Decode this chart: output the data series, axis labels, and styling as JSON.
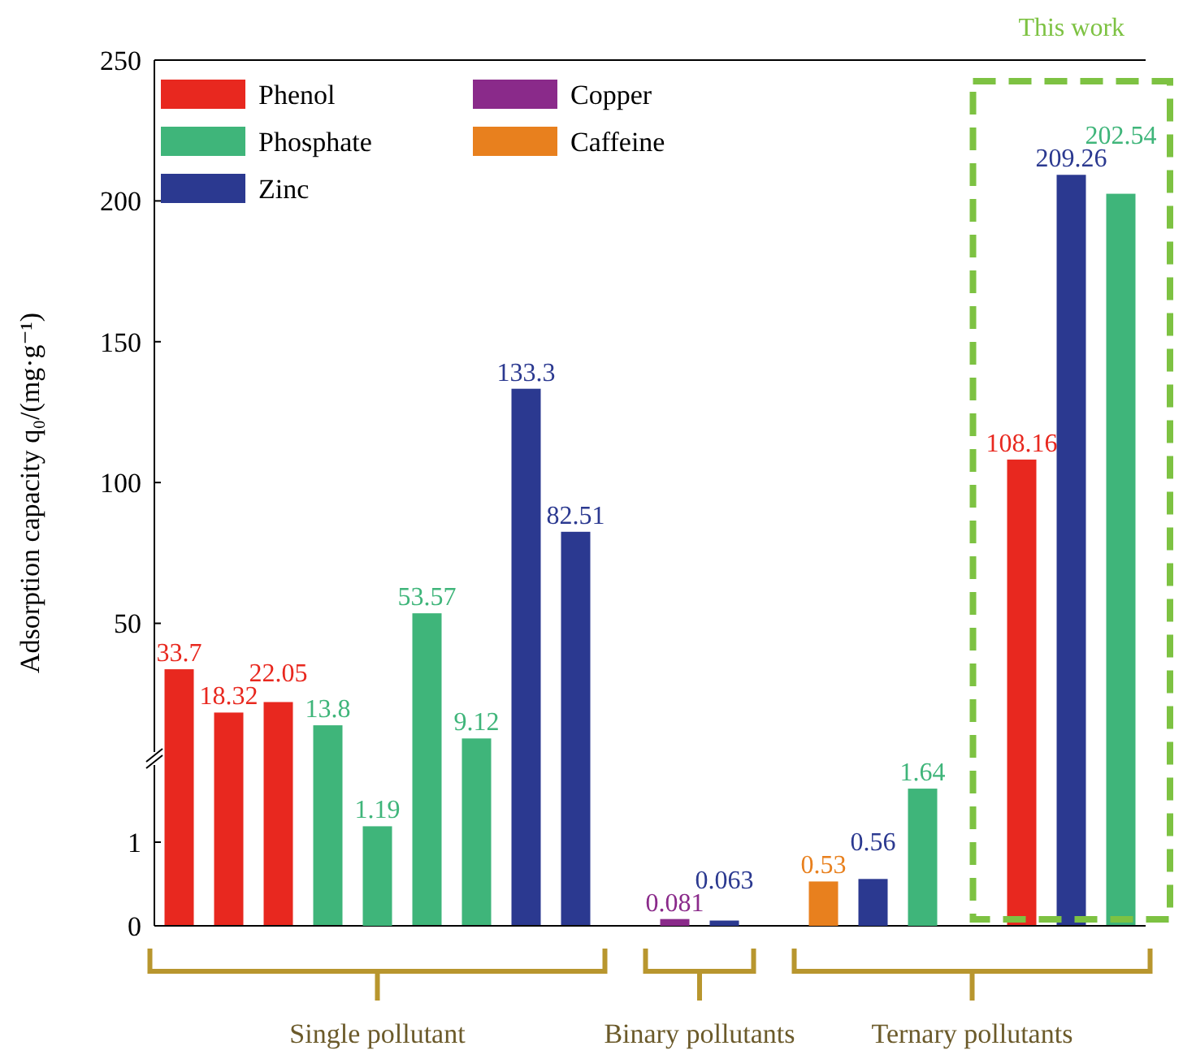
{
  "chart_data": [
    {
      "type": "bar",
      "ylabel": "Adsorption capacity q₀/(mg·g⁻¹)",
      "categories": [
        null,
        null,
        null,
        null,
        null,
        null,
        null,
        null,
        null,
        null,
        null,
        null,
        null,
        null,
        null,
        null,
        null,
        null,
        null,
        null
      ],
      "series": [
        {
          "name": "Phenol",
          "color": "#e8281f",
          "values": [
            33.7,
            18.32,
            22.05,
            null,
            null,
            null,
            null,
            null,
            null,
            null,
            null,
            null,
            null,
            null,
            null,
            null,
            null,
            108.16,
            null,
            null
          ]
        },
        {
          "name": "Phosphate",
          "color": "#3fb57a",
          "values": [
            null,
            null,
            null,
            13.8,
            null,
            53.57,
            9.12,
            null,
            null,
            null,
            null,
            null,
            null,
            null,
            null,
            null,
            null,
            null,
            null,
            202.54
          ]
        },
        {
          "name": "Zinc",
          "color": "#2b3990",
          "values": [
            null,
            null,
            null,
            null,
            null,
            null,
            null,
            133.3,
            82.51,
            null,
            null,
            null,
            null,
            null,
            null,
            null,
            null,
            null,
            209.26,
            null
          ]
        },
        {
          "name": "Copper",
          "color": "#8a2a8a",
          "values": [
            null,
            null,
            null,
            null,
            null,
            null,
            null,
            null,
            null,
            null,
            null,
            null,
            null,
            null,
            null,
            null,
            null,
            null,
            null,
            null
          ]
        },
        {
          "name": "Caffeine",
          "color": "#e8801e",
          "values": [
            null,
            null,
            null,
            null,
            null,
            null,
            null,
            null,
            null,
            null,
            null,
            null,
            null,
            null,
            null,
            null,
            null,
            null,
            null,
            null
          ]
        }
      ],
      "ylim": [
        2,
        250
      ],
      "yticks": [
        50,
        100,
        150,
        200,
        250
      ],
      "data_labels": true,
      "legend": "top left",
      "annotations": [
        "This work"
      ]
    },
    {
      "type": "bar",
      "categories": [
        null,
        null,
        null,
        null,
        null,
        null,
        null,
        null,
        null,
        null,
        null,
        null,
        null,
        null,
        null,
        null,
        null,
        null,
        null,
        null
      ],
      "series": [
        {
          "color": "#3fb57a",
          "values": [
            null,
            null,
            null,
            null,
            1.19,
            null,
            null,
            null,
            null,
            null,
            null,
            null,
            null,
            null,
            null,
            1.64,
            null,
            null,
            null,
            null
          ]
        },
        {
          "color": "#2b3990",
          "values": [
            null,
            null,
            null,
            null,
            null,
            null,
            null,
            null,
            null,
            null,
            null,
            0.063,
            null,
            null,
            0.56,
            null,
            null,
            null,
            null,
            null
          ]
        },
        {
          "color": "#8a2a8a",
          "values": [
            null,
            null,
            null,
            null,
            null,
            null,
            null,
            null,
            null,
            null,
            0.081,
            null,
            null,
            null,
            null,
            null,
            null,
            null,
            null,
            null
          ]
        },
        {
          "color": "#e8801e",
          "values": [
            null,
            null,
            null,
            null,
            null,
            null,
            null,
            null,
            null,
            null,
            null,
            null,
            null,
            0.53,
            null,
            null,
            null,
            null,
            null,
            null
          ]
        }
      ],
      "ylim": [
        0,
        2
      ],
      "yticks": [
        0,
        1
      ],
      "data_labels": true,
      "annotations": [
        "Single pollutant",
        "Binary pollutants",
        "Ternary pollutants"
      ]
    }
  ]
}
